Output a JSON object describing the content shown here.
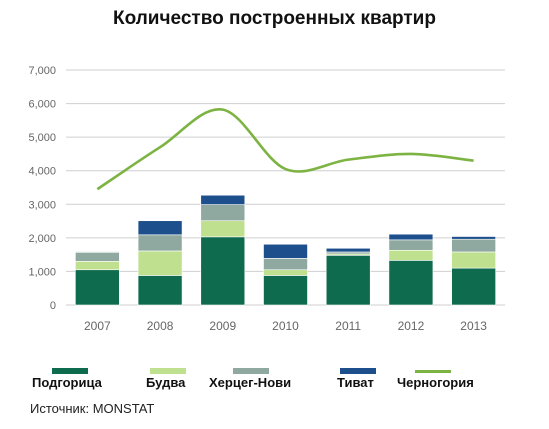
{
  "title": "Количество построенных квартир",
  "source": "Источник: MONSTAT",
  "colors": {
    "podgorica": "#0f6b4d",
    "budva": "#bfe08e",
    "herceg": "#8fa8a0",
    "tivat": "#1c4f8c",
    "montenegro": "#7cb342",
    "grid": "#cfcfcf",
    "tick": "#666666"
  },
  "chart_data": {
    "type": "bar",
    "stacked": true,
    "categories": [
      "2007",
      "2008",
      "2009",
      "2010",
      "2011",
      "2012",
      "2013"
    ],
    "ylim": [
      0,
      7000
    ],
    "yticks": [
      "0",
      "1,000",
      "2,000",
      "3,000",
      "4,000",
      "5,000",
      "6,000",
      "7,000"
    ],
    "series": [
      {
        "name": "Подгорица",
        "key": "podgorica",
        "values": [
          1050,
          880,
          2030,
          880,
          1480,
          1330,
          1100
        ]
      },
      {
        "name": "Будва",
        "key": "budva",
        "values": [
          250,
          730,
          480,
          170,
          40,
          300,
          480
        ]
      },
      {
        "name": "Херцег-Нови",
        "key": "herceg",
        "values": [
          270,
          480,
          480,
          340,
          60,
          310,
          380
        ]
      },
      {
        "name": "Тиват",
        "key": "tivat",
        "values": [
          20,
          420,
          280,
          420,
          110,
          170,
          80
        ]
      }
    ],
    "line": {
      "name": "Черногория",
      "key": "montenegro",
      "values": [
        3450,
        4700,
        5820,
        4050,
        4330,
        4500,
        4300
      ]
    },
    "grid": true,
    "legend": "bottom"
  }
}
